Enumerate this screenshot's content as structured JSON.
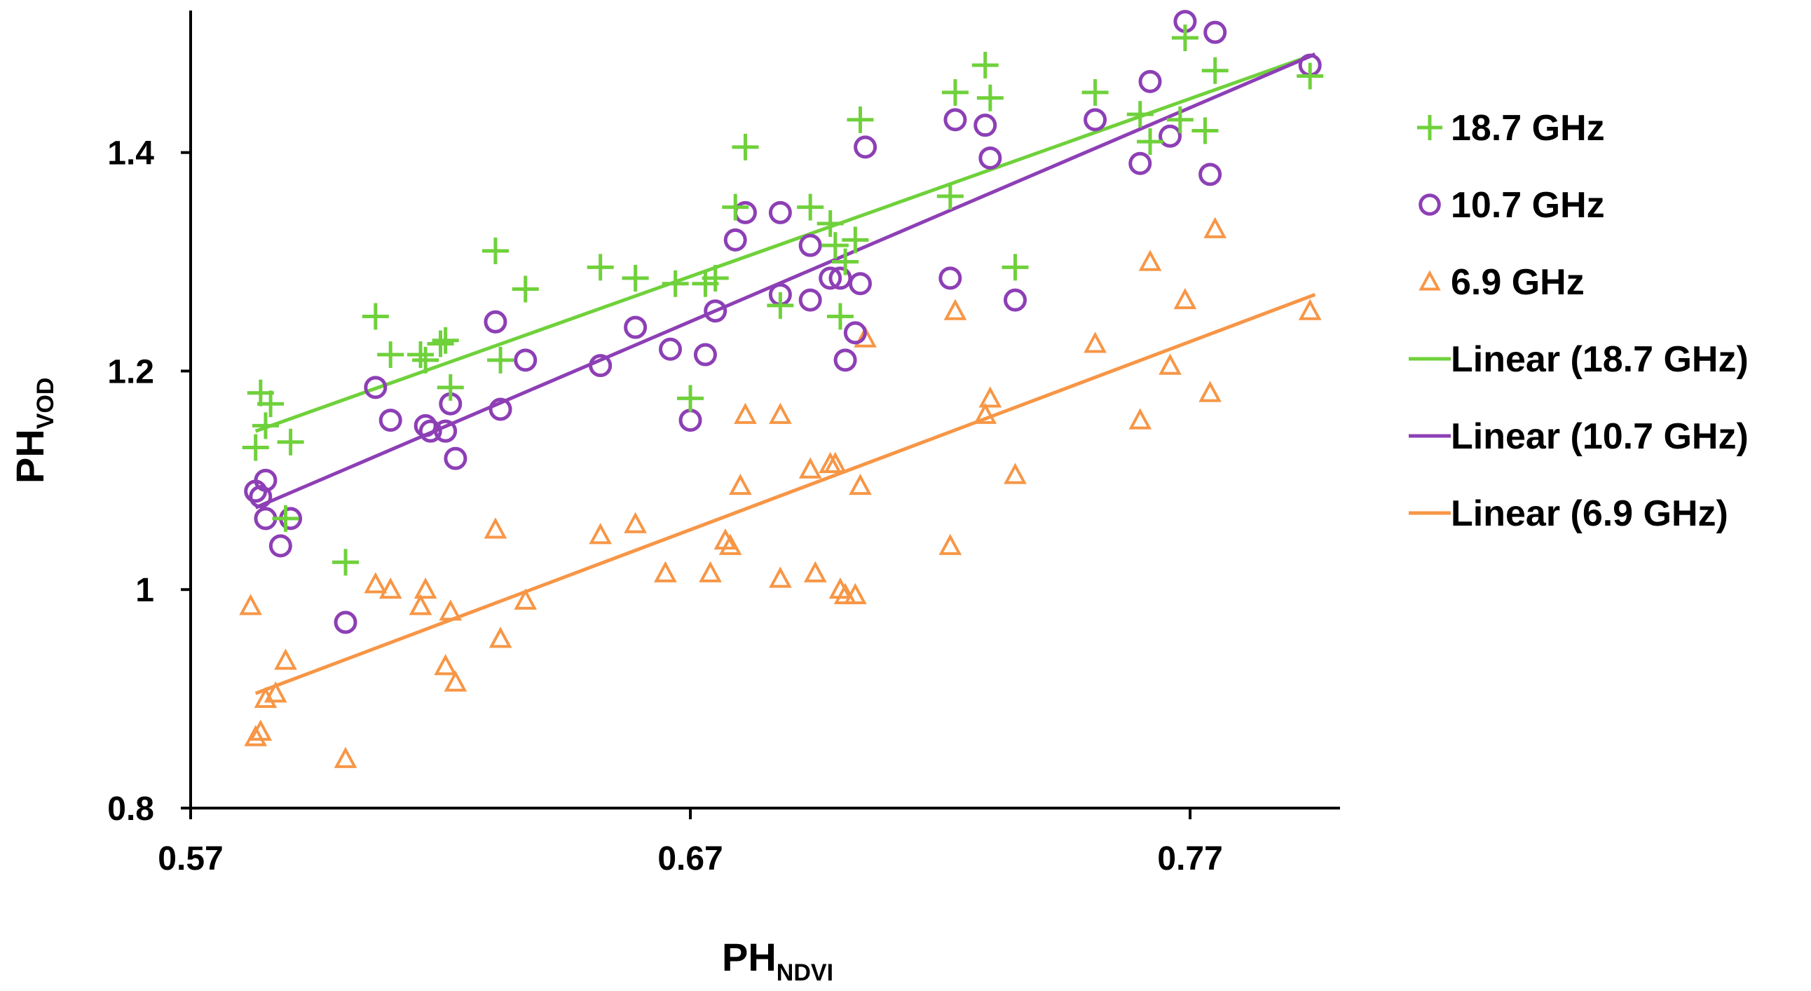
{
  "chart_data": {
    "type": "scatter",
    "title": "",
    "xlabel": {
      "base": "PH",
      "sub": "NDVI"
    },
    "ylabel": {
      "base": "PH",
      "sub": "VOD"
    },
    "xlim": [
      0.57,
      0.8
    ],
    "ylim": [
      0.8,
      1.53
    ],
    "xticks": [
      0.57,
      0.67,
      0.77
    ],
    "xtick_labels": [
      "0.57",
      "0.67",
      "0.77"
    ],
    "yticks": [
      0.8,
      1.0,
      1.2,
      1.4
    ],
    "ytick_labels": [
      "0.8",
      "1",
      "1.2",
      "1.4"
    ],
    "legend_position": "right",
    "series": [
      {
        "name": "18.7 GHz",
        "marker": "plus",
        "color": "#6fd13b",
        "points": [
          [
            0.583,
            1.13
          ],
          [
            0.584,
            1.18
          ],
          [
            0.585,
            1.15
          ],
          [
            0.586,
            1.17
          ],
          [
            0.589,
            1.065
          ],
          [
            0.59,
            1.135
          ],
          [
            0.601,
            1.025
          ],
          [
            0.607,
            1.25
          ],
          [
            0.61,
            1.215
          ],
          [
            0.616,
            1.215
          ],
          [
            0.617,
            1.21
          ],
          [
            0.62,
            1.225
          ],
          [
            0.621,
            1.228
          ],
          [
            0.622,
            1.185
          ],
          [
            0.631,
            1.31
          ],
          [
            0.632,
            1.21
          ],
          [
            0.637,
            1.275
          ],
          [
            0.652,
            1.295
          ],
          [
            0.659,
            1.285
          ],
          [
            0.667,
            1.28
          ],
          [
            0.67,
            1.175
          ],
          [
            0.673,
            1.28
          ],
          [
            0.675,
            1.285
          ],
          [
            0.679,
            1.35
          ],
          [
            0.681,
            1.405
          ],
          [
            0.688,
            1.26
          ],
          [
            0.694,
            1.35
          ],
          [
            0.698,
            1.335
          ],
          [
            0.699,
            1.315
          ],
          [
            0.7,
            1.25
          ],
          [
            0.701,
            1.3
          ],
          [
            0.703,
            1.32
          ],
          [
            0.704,
            1.43
          ],
          [
            0.722,
            1.36
          ],
          [
            0.723,
            1.455
          ],
          [
            0.729,
            1.48
          ],
          [
            0.73,
            1.45
          ],
          [
            0.735,
            1.295
          ],
          [
            0.751,
            1.455
          ],
          [
            0.76,
            1.435
          ],
          [
            0.762,
            1.41
          ],
          [
            0.768,
            1.43
          ],
          [
            0.769,
            1.505
          ],
          [
            0.773,
            1.42
          ],
          [
            0.775,
            1.475
          ],
          [
            0.794,
            1.47
          ]
        ]
      },
      {
        "name": "10.7 GHz",
        "marker": "circle",
        "color": "#8d3fb5",
        "points": [
          [
            0.583,
            1.09
          ],
          [
            0.584,
            1.085
          ],
          [
            0.585,
            1.1
          ],
          [
            0.585,
            1.065
          ],
          [
            0.588,
            1.04
          ],
          [
            0.59,
            1.065
          ],
          [
            0.601,
            0.97
          ],
          [
            0.607,
            1.185
          ],
          [
            0.61,
            1.155
          ],
          [
            0.617,
            1.15
          ],
          [
            0.618,
            1.145
          ],
          [
            0.621,
            1.145
          ],
          [
            0.622,
            1.17
          ],
          [
            0.623,
            1.12
          ],
          [
            0.631,
            1.245
          ],
          [
            0.632,
            1.165
          ],
          [
            0.637,
            1.21
          ],
          [
            0.652,
            1.205
          ],
          [
            0.659,
            1.24
          ],
          [
            0.666,
            1.22
          ],
          [
            0.67,
            1.155
          ],
          [
            0.673,
            1.215
          ],
          [
            0.675,
            1.255
          ],
          [
            0.679,
            1.32
          ],
          [
            0.681,
            1.345
          ],
          [
            0.688,
            1.27
          ],
          [
            0.688,
            1.345
          ],
          [
            0.694,
            1.315
          ],
          [
            0.694,
            1.265
          ],
          [
            0.698,
            1.285
          ],
          [
            0.7,
            1.285
          ],
          [
            0.701,
            1.21
          ],
          [
            0.703,
            1.235
          ],
          [
            0.704,
            1.28
          ],
          [
            0.705,
            1.405
          ],
          [
            0.722,
            1.285
          ],
          [
            0.723,
            1.43
          ],
          [
            0.729,
            1.425
          ],
          [
            0.73,
            1.395
          ],
          [
            0.735,
            1.265
          ],
          [
            0.751,
            1.43
          ],
          [
            0.76,
            1.39
          ],
          [
            0.762,
            1.465
          ],
          [
            0.766,
            1.415
          ],
          [
            0.769,
            1.52
          ],
          [
            0.774,
            1.38
          ],
          [
            0.775,
            1.51
          ],
          [
            0.794,
            1.48
          ]
        ]
      },
      {
        "name": "6.9 GHz",
        "marker": "triangle",
        "color": "#f79646",
        "points": [
          [
            0.582,
            0.985
          ],
          [
            0.583,
            0.865
          ],
          [
            0.584,
            0.87
          ],
          [
            0.585,
            0.9
          ],
          [
            0.587,
            0.905
          ],
          [
            0.589,
            0.935
          ],
          [
            0.601,
            0.845
          ],
          [
            0.607,
            1.005
          ],
          [
            0.61,
            1.0
          ],
          [
            0.616,
            0.985
          ],
          [
            0.617,
            1.0
          ],
          [
            0.621,
            0.93
          ],
          [
            0.622,
            0.98
          ],
          [
            0.623,
            0.915
          ],
          [
            0.631,
            1.055
          ],
          [
            0.632,
            0.955
          ],
          [
            0.637,
            0.99
          ],
          [
            0.652,
            1.05
          ],
          [
            0.659,
            1.06
          ],
          [
            0.665,
            1.015
          ],
          [
            0.674,
            1.015
          ],
          [
            0.677,
            1.045
          ],
          [
            0.678,
            1.04
          ],
          [
            0.68,
            1.095
          ],
          [
            0.681,
            1.16
          ],
          [
            0.688,
            1.16
          ],
          [
            0.688,
            1.01
          ],
          [
            0.694,
            1.11
          ],
          [
            0.695,
            1.015
          ],
          [
            0.698,
            1.115
          ],
          [
            0.699,
            1.115
          ],
          [
            0.7,
            1.0
          ],
          [
            0.701,
            0.995
          ],
          [
            0.703,
            0.995
          ],
          [
            0.704,
            1.095
          ],
          [
            0.705,
            1.23
          ],
          [
            0.722,
            1.04
          ],
          [
            0.723,
            1.255
          ],
          [
            0.729,
            1.16
          ],
          [
            0.73,
            1.175
          ],
          [
            0.735,
            1.105
          ],
          [
            0.751,
            1.225
          ],
          [
            0.76,
            1.155
          ],
          [
            0.762,
            1.3
          ],
          [
            0.766,
            1.205
          ],
          [
            0.769,
            1.265
          ],
          [
            0.774,
            1.18
          ],
          [
            0.775,
            1.33
          ],
          [
            0.794,
            1.255
          ]
        ]
      },
      {
        "name": "Linear (18.7 GHz)",
        "marker": "line",
        "color": "#6fd13b",
        "line": [
          [
            0.583,
            1.145
          ],
          [
            0.795,
            1.49
          ]
        ]
      },
      {
        "name": "Linear (10.7 GHz)",
        "marker": "line",
        "color": "#8d3fb5",
        "line": [
          [
            0.583,
            1.075
          ],
          [
            0.795,
            1.49
          ]
        ]
      },
      {
        "name": "Linear (6.9 GHz)",
        "marker": "line",
        "color": "#f79646",
        "line": [
          [
            0.583,
            0.905
          ],
          [
            0.795,
            1.27
          ]
        ]
      }
    ]
  }
}
